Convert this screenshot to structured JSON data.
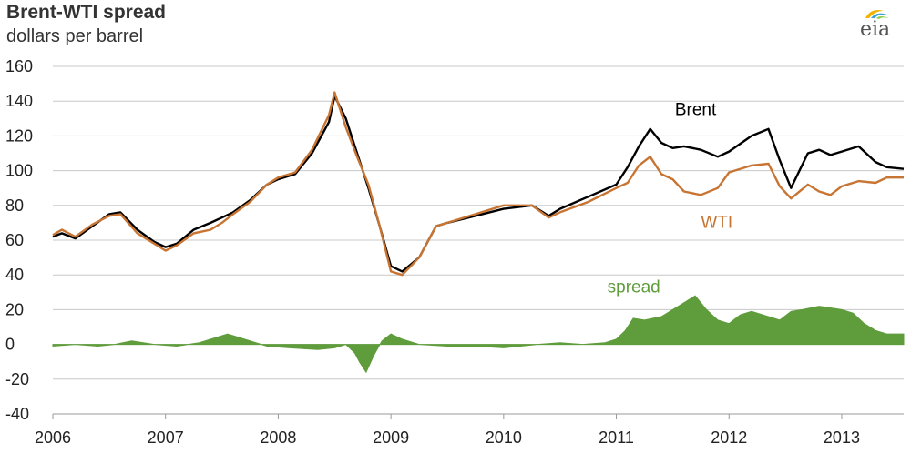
{
  "header": {
    "title": "Brent-WTI spread",
    "subtitle": "dollars per barrel",
    "logo_text": "eia"
  },
  "colors": {
    "brent": "#000000",
    "wti": "#c87533",
    "spread": "#5f9c3c",
    "grid": "#c8c8c8"
  },
  "chart_data": {
    "type": "line",
    "title": "Brent-WTI spread",
    "ylabel": "dollars per barrel",
    "ylim": [
      -40,
      160
    ],
    "yticks": [
      -40,
      -20,
      0,
      20,
      40,
      60,
      80,
      100,
      120,
      140,
      160
    ],
    "xlim": [
      2006.0,
      2013.55
    ],
    "xticks": [
      2006,
      2007,
      2008,
      2009,
      2010,
      2011,
      2012,
      2013
    ],
    "xtick_labels": [
      "2006",
      "2007",
      "2008",
      "2009",
      "2010",
      "2011",
      "2012",
      "2013"
    ],
    "grid": "horizontal",
    "annotations": [
      {
        "text": "Brent",
        "series": "Brent"
      },
      {
        "text": "WTI",
        "series": "WTI"
      },
      {
        "text": "spread",
        "series": "spread"
      }
    ],
    "series": [
      {
        "name": "Brent",
        "x": [
          2006.0,
          2006.08,
          2006.2,
          2006.35,
          2006.5,
          2006.6,
          2006.75,
          2006.9,
          2007.0,
          2007.1,
          2007.25,
          2007.4,
          2007.5,
          2007.6,
          2007.75,
          2007.9,
          2008.0,
          2008.15,
          2008.3,
          2008.45,
          2008.5,
          2008.6,
          2008.7,
          2008.8,
          2008.9,
          2009.0,
          2009.1,
          2009.25,
          2009.4,
          2009.5,
          2009.75,
          2010.0,
          2010.25,
          2010.4,
          2010.5,
          2010.75,
          2011.0,
          2011.1,
          2011.2,
          2011.3,
          2011.4,
          2011.5,
          2011.6,
          2011.75,
          2011.9,
          2012.0,
          2012.2,
          2012.35,
          2012.45,
          2012.55,
          2012.7,
          2012.8,
          2012.9,
          2013.0,
          2013.15,
          2013.3,
          2013.4,
          2013.55
        ],
        "y": [
          62,
          64,
          61,
          68,
          75,
          76,
          66,
          59,
          56,
          58,
          66,
          70,
          73,
          76,
          83,
          92,
          95,
          98,
          110,
          128,
          143,
          130,
          110,
          90,
          68,
          45,
          42,
          50,
          68,
          70,
          74,
          78,
          80,
          74,
          78,
          85,
          92,
          102,
          114,
          124,
          116,
          113,
          114,
          112,
          108,
          111,
          120,
          124,
          106,
          90,
          110,
          112,
          109,
          111,
          114,
          105,
          102,
          101
        ]
      },
      {
        "name": "WTI",
        "x": [
          2006.0,
          2006.08,
          2006.2,
          2006.35,
          2006.5,
          2006.6,
          2006.75,
          2006.9,
          2007.0,
          2007.1,
          2007.25,
          2007.4,
          2007.5,
          2007.6,
          2007.75,
          2007.9,
          2008.0,
          2008.15,
          2008.3,
          2008.45,
          2008.5,
          2008.6,
          2008.7,
          2008.8,
          2008.9,
          2009.0,
          2009.1,
          2009.25,
          2009.4,
          2009.5,
          2009.75,
          2010.0,
          2010.25,
          2010.4,
          2010.5,
          2010.75,
          2011.0,
          2011.1,
          2011.2,
          2011.3,
          2011.4,
          2011.5,
          2011.6,
          2011.75,
          2011.9,
          2012.0,
          2012.2,
          2012.35,
          2012.45,
          2012.55,
          2012.7,
          2012.8,
          2012.9,
          2013.0,
          2013.15,
          2013.3,
          2013.4,
          2013.55
        ],
        "y": [
          63,
          66,
          62,
          69,
          74,
          75,
          64,
          58,
          54,
          57,
          64,
          66,
          70,
          75,
          82,
          92,
          96,
          99,
          112,
          132,
          145,
          125,
          108,
          92,
          68,
          42,
          40,
          50,
          68,
          70,
          75,
          80,
          80,
          73,
          76,
          82,
          90,
          93,
          103,
          108,
          98,
          95,
          88,
          86,
          90,
          99,
          103,
          104,
          91,
          84,
          92,
          88,
          86,
          91,
          94,
          93,
          96,
          96
        ]
      },
      {
        "name": "spread",
        "x": [
          2006.0,
          2006.2,
          2006.4,
          2006.55,
          2006.7,
          2006.9,
          2007.1,
          2007.3,
          2007.45,
          2007.55,
          2007.7,
          2007.9,
          2008.1,
          2008.35,
          2008.5,
          2008.6,
          2008.68,
          2008.72,
          2008.78,
          2008.85,
          2008.92,
          2009.0,
          2009.1,
          2009.25,
          2009.5,
          2009.75,
          2010.0,
          2010.3,
          2010.5,
          2010.7,
          2010.9,
          2011.0,
          2011.08,
          2011.15,
          2011.25,
          2011.4,
          2011.5,
          2011.6,
          2011.7,
          2011.8,
          2011.9,
          2012.0,
          2012.1,
          2012.2,
          2012.3,
          2012.45,
          2012.55,
          2012.65,
          2012.8,
          2012.9,
          2013.0,
          2013.1,
          2013.2,
          2013.3,
          2013.4,
          2013.55
        ],
        "y": [
          -1,
          0,
          -1,
          0,
          2,
          0,
          -1,
          1,
          4,
          6,
          3,
          -1,
          -2,
          -3,
          -2,
          0,
          -5,
          -10,
          -16,
          -6,
          2,
          6,
          3,
          0,
          -1,
          -1,
          -2,
          0,
          1,
          0,
          1,
          3,
          8,
          15,
          14,
          16,
          20,
          24,
          28,
          20,
          14,
          12,
          17,
          19,
          17,
          14,
          19,
          20,
          22,
          21,
          20,
          18,
          12,
          8,
          6,
          6
        ]
      }
    ]
  }
}
